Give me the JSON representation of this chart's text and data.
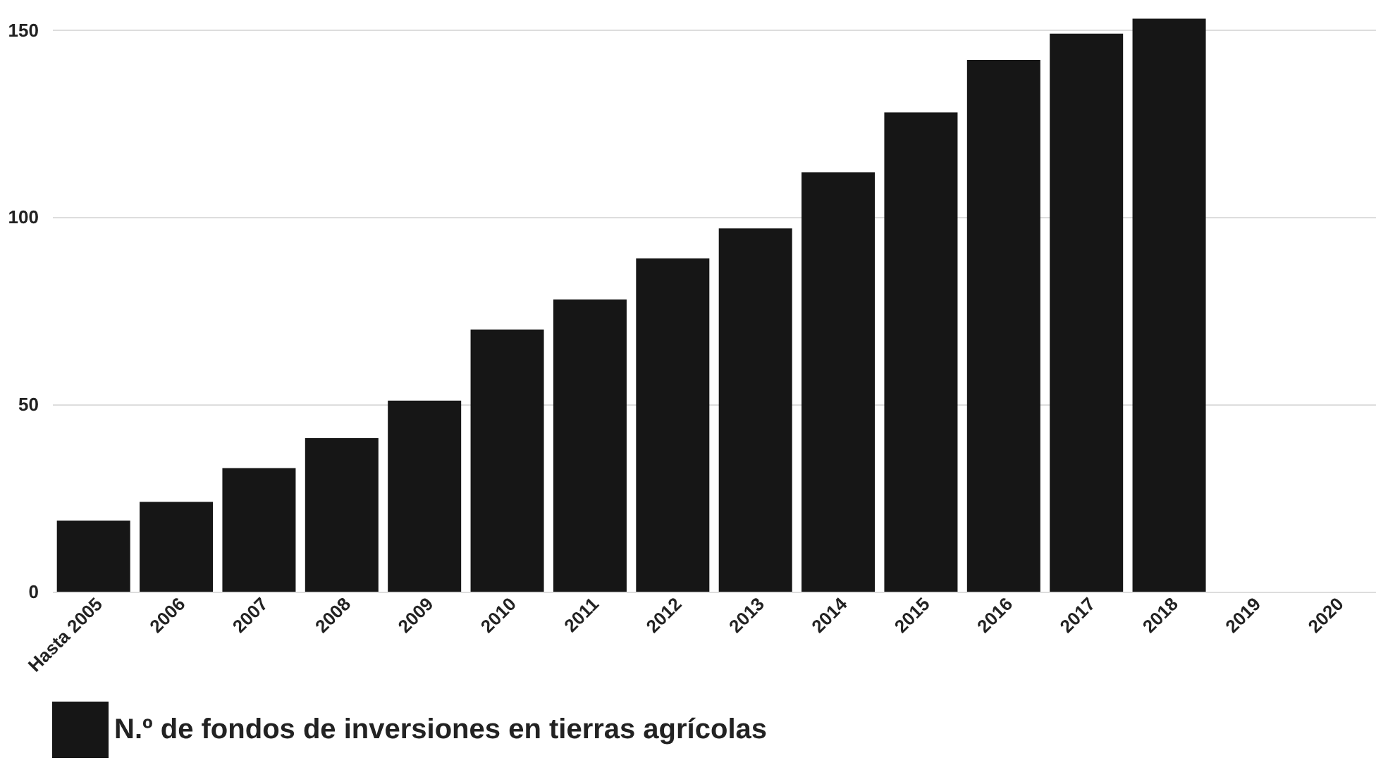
{
  "chart_data": {
    "type": "bar",
    "categories": [
      "Hasta 2005",
      "2006",
      "2007",
      "2008",
      "2009",
      "2010",
      "2011",
      "2012",
      "2013",
      "2014",
      "2015",
      "2016",
      "2017",
      "2018",
      "2019",
      "2020"
    ],
    "series": [
      {
        "name": "N.º de fondos de inversiones en tierras agrícolas",
        "color": "#161616",
        "values": [
          19,
          24,
          33,
          41,
          51,
          70,
          78,
          89,
          97,
          112,
          128,
          142,
          149,
          153,
          null,
          null
        ]
      }
    ],
    "ylim": [
      0,
      158
    ],
    "yticks": [
      0,
      50,
      100,
      150
    ],
    "grid": "y",
    "legend": "bottom"
  }
}
